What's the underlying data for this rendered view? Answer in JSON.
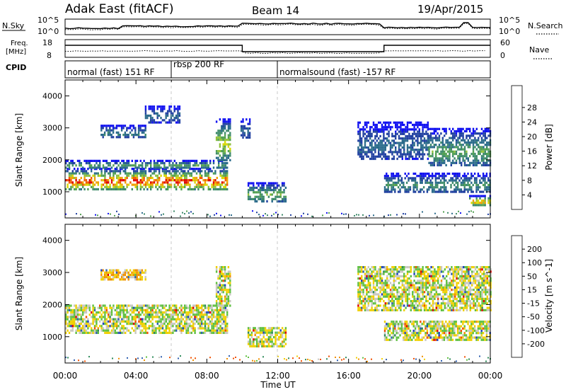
{
  "header": {
    "station": "Adak East (fitACF)",
    "beam": "Beam 14",
    "date": "19/Apr/2015"
  },
  "noise_panel": {
    "left_label": "N.Sky",
    "right_label": "N.Search",
    "tick_top": "10^5",
    "tick_bottom": "10^0"
  },
  "freq_panel": {
    "left_label_1": "Freq.",
    "left_label_2": "[MHz]",
    "left_tick_top": "18",
    "left_tick_bottom": "8",
    "right_label": "Nave",
    "right_tick_top": "60",
    "right_tick_bottom": "0"
  },
  "cpid": {
    "label": "CPID",
    "segments": [
      {
        "text": "normal (fast) 151 RF",
        "start_hour": 0,
        "end_hour": 6
      },
      {
        "text": "rbsp 200 RF",
        "start_hour": 6,
        "end_hour": 12
      },
      {
        "text": "normalsound (fast) -157 RF",
        "start_hour": 12,
        "end_hour": 24
      }
    ]
  },
  "axes": {
    "ylabel": "Slant Range [km]",
    "xlabel": "Time UT",
    "y_ticks": [
      "1000",
      "2000",
      "3000",
      "4000"
    ],
    "x_ticks": [
      "00:00",
      "04:00",
      "08:00",
      "12:00",
      "16:00",
      "20:00",
      "00:00"
    ]
  },
  "power_scale": {
    "label": "Power [dB]",
    "ticks": [
      "4",
      "8",
      "12",
      "16",
      "20",
      "24",
      "28"
    ],
    "colors": [
      "#1010f0",
      "#2040a0",
      "#2a6a8a",
      "#3d8a6a",
      "#52a052",
      "#90c03a",
      "#d8d800",
      "#f0a000",
      "#f05a00",
      "#e00000"
    ]
  },
  "velocity_scale": {
    "label": "Velocity [m s^-1]",
    "ticks": [
      "200",
      "100",
      "50",
      "15",
      "-15",
      "-50",
      "-100",
      "-200"
    ],
    "colors": [
      "#1f3fc0",
      "#2f5fb0",
      "#2e8a5a",
      "#5fc040",
      "#c8c8c0",
      "#f0d000",
      "#f09000",
      "#f05000",
      "#e00000"
    ]
  },
  "chart_data": {
    "type": "heatmap",
    "title": "Adak East (fitACF) Beam 14 19/Apr/2015",
    "x_unit": "Time UT (hours)",
    "xlim": [
      0,
      24
    ],
    "ylim": [
      180,
      4500
    ],
    "panels": [
      {
        "name": "Power",
        "scale": [
          0,
          30
        ],
        "regions": [
          {
            "t0": 0,
            "t1": 9.2,
            "r_lo": 1100,
            "r_hi": 1750,
            "peak": 30
          },
          {
            "t0": 0,
            "t1": 9.2,
            "r_lo": 1750,
            "r_hi": 2000,
            "peak": 14
          },
          {
            "t0": 2.0,
            "t1": 4.5,
            "r_lo": 2700,
            "r_hi": 3100,
            "peak": 10
          },
          {
            "t0": 4.5,
            "t1": 6.5,
            "r_lo": 3200,
            "r_hi": 3700,
            "peak": 8
          },
          {
            "t0": 8.5,
            "t1": 9.3,
            "r_lo": 2000,
            "r_hi": 3300,
            "peak": 20
          },
          {
            "t0": 9.9,
            "t1": 10.4,
            "r_lo": 2700,
            "r_hi": 3300,
            "peak": 8
          },
          {
            "t0": 10.3,
            "t1": 12.5,
            "r_lo": 700,
            "r_hi": 1300,
            "peak": 16
          },
          {
            "t0": 16.5,
            "t1": 20.5,
            "r_lo": 2000,
            "r_hi": 3200,
            "peak": 8
          },
          {
            "t0": 20.5,
            "t1": 24,
            "r_lo": 1800,
            "r_hi": 3000,
            "peak": 14
          },
          {
            "t0": 18.0,
            "t1": 24,
            "r_lo": 1000,
            "r_hi": 1600,
            "peak": 12
          },
          {
            "t0": 22.8,
            "t1": 24,
            "r_lo": 600,
            "r_hi": 900,
            "peak": 28
          }
        ]
      },
      {
        "name": "Velocity",
        "scale": [
          -200,
          200
        ],
        "regions": [
          {
            "t0": 0,
            "t1": 9.2,
            "r_lo": 1100,
            "r_hi": 2000,
            "value": 0
          },
          {
            "t0": 2.0,
            "t1": 4.5,
            "r_lo": 2800,
            "r_hi": 3100,
            "value": -30
          },
          {
            "t0": 8.5,
            "t1": 9.3,
            "r_lo": 2000,
            "r_hi": 3200,
            "value": 0
          },
          {
            "t0": 10.3,
            "t1": 12.5,
            "r_lo": 700,
            "r_hi": 1300,
            "value": 0
          },
          {
            "t0": 16.5,
            "t1": 24,
            "r_lo": 1800,
            "r_hi": 3200,
            "value": 0
          },
          {
            "t0": 18.0,
            "t1": 24,
            "r_lo": 900,
            "r_hi": 1500,
            "value": 0
          }
        ]
      }
    ]
  }
}
